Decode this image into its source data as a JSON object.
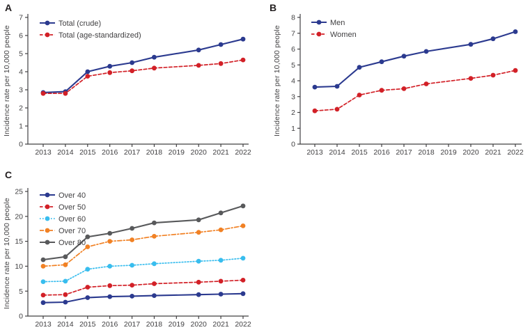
{
  "figure": {
    "background": "#ffffff",
    "text_color": "#414042",
    "axis_color": "#414042",
    "panel_letter_color": "#231f20"
  },
  "chart_data": [
    {
      "type": "line",
      "panel_label": "A",
      "ylabel": "Incidence rate per 10,000 people",
      "xlabel": "",
      "ylim": [
        0,
        7
      ],
      "yticks": [
        0,
        1,
        2,
        3,
        4,
        5,
        6,
        7
      ],
      "grid": false,
      "legend_position": "top-left-inside",
      "x": [
        "2013",
        "2014",
        "2015",
        "2016",
        "2017",
        "2018",
        "2019",
        "2020",
        "2021",
        "2022"
      ],
      "series": [
        {
          "name": "Total (crude)",
          "color": "#2b3a8f",
          "style": "solid",
          "marker": "circle",
          "values": [
            2.85,
            2.9,
            4.0,
            4.3,
            4.5,
            4.8,
            null,
            5.2,
            5.5,
            5.8
          ]
        },
        {
          "name": "Total (age-standardized)",
          "color": "#d22027",
          "style": "dashed",
          "marker": "circle",
          "values": [
            2.8,
            2.8,
            3.75,
            3.95,
            4.05,
            4.2,
            null,
            4.35,
            4.45,
            4.65
          ]
        }
      ]
    },
    {
      "type": "line",
      "panel_label": "B",
      "ylabel": "Incidence rate per 10,000 people",
      "xlabel": "",
      "ylim": [
        0,
        8
      ],
      "yticks": [
        0,
        1,
        2,
        3,
        4,
        5,
        6,
        7,
        8
      ],
      "grid": false,
      "legend_position": "top-left-inside",
      "x": [
        "2013",
        "2014",
        "2015",
        "2016",
        "2017",
        "2018",
        "2019",
        "2020",
        "2021",
        "2022"
      ],
      "series": [
        {
          "name": "Men",
          "color": "#2b3a8f",
          "style": "solid",
          "marker": "circle",
          "values": [
            3.6,
            3.65,
            4.85,
            5.2,
            5.55,
            5.85,
            null,
            6.3,
            6.65,
            7.1
          ]
        },
        {
          "name": "Women",
          "color": "#d22027",
          "style": "dashed",
          "marker": "circle",
          "values": [
            2.1,
            2.2,
            3.1,
            3.4,
            3.5,
            3.8,
            null,
            4.15,
            4.35,
            4.65
          ]
        }
      ]
    },
    {
      "type": "line",
      "panel_label": "C",
      "ylabel": "Incidence rate per 10,000 people",
      "xlabel": "",
      "ylim": [
        0,
        25
      ],
      "yticks": [
        0,
        5,
        10,
        15,
        20,
        25
      ],
      "grid": false,
      "legend_position": "top-left-inside",
      "x": [
        "2013",
        "2014",
        "2015",
        "2016",
        "2017",
        "2018",
        "2019",
        "2020",
        "2021",
        "2022"
      ],
      "series": [
        {
          "name": "Over 40",
          "color": "#2b3a8f",
          "style": "solid",
          "marker": "circle",
          "values": [
            2.7,
            2.8,
            3.7,
            3.9,
            4.0,
            4.1,
            null,
            4.3,
            4.4,
            4.5
          ]
        },
        {
          "name": "Over 50",
          "color": "#d22027",
          "style": "dashed",
          "marker": "circle",
          "values": [
            4.2,
            4.3,
            5.8,
            6.1,
            6.2,
            6.5,
            null,
            6.8,
            7.0,
            7.2
          ]
        },
        {
          "name": "Over 60",
          "color": "#38bdee",
          "style": "dotted",
          "marker": "circle",
          "values": [
            6.9,
            7.0,
            9.4,
            10.0,
            10.2,
            10.5,
            null,
            11.0,
            11.2,
            11.6
          ]
        },
        {
          "name": "Over 70",
          "color": "#f18124",
          "style": "dashdot",
          "marker": "circle",
          "values": [
            10.0,
            10.3,
            13.9,
            15.0,
            15.3,
            16.0,
            null,
            16.8,
            17.3,
            18.1
          ]
        },
        {
          "name": "Over 80",
          "color": "#58595b",
          "style": "solid",
          "marker": "circle",
          "values": [
            11.3,
            11.9,
            15.9,
            16.6,
            17.6,
            18.7,
            null,
            19.3,
            20.7,
            22.1
          ]
        }
      ]
    }
  ]
}
